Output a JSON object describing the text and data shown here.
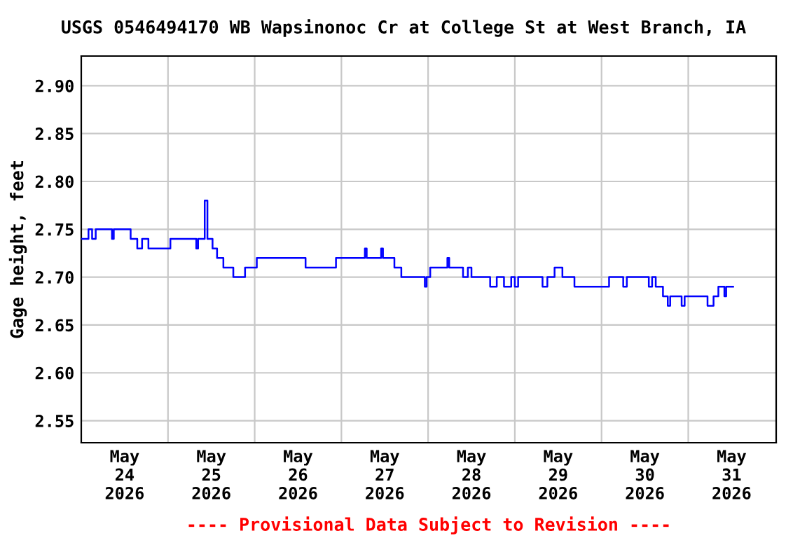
{
  "chart_data": {
    "type": "step",
    "title": "USGS 0546494170 WB Wapsinonoc Cr at College St at West Branch, IA",
    "ylabel": "Gage height, feet",
    "annotations": [
      "---- Provisional Data Subject to Revision ----"
    ],
    "x": [
      "2026-05-23T12:00",
      "2026-05-23T14:00",
      "2026-05-23T15:00",
      "2026-05-23T16:00",
      "2026-05-23T20:30",
      "2026-05-23T21:00",
      "2026-05-24T01:40",
      "2026-05-24T03:30",
      "2026-05-24T04:50",
      "2026-05-24T06:35",
      "2026-05-24T12:40",
      "2026-05-24T19:50",
      "2026-05-24T20:20",
      "2026-05-24T22:10",
      "2026-05-24T22:55",
      "2026-05-25T00:20",
      "2026-05-25T01:35",
      "2026-05-25T03:20",
      "2026-05-25T06:05",
      "2026-05-25T09:20",
      "2026-05-25T12:35",
      "2026-05-26T02:05",
      "2026-05-26T10:30",
      "2026-05-26T18:30",
      "2026-05-26T19:00",
      "2026-05-26T23:00",
      "2026-05-26T23:30",
      "2026-05-27T02:40",
      "2026-05-27T04:35",
      "2026-05-27T11:05",
      "2026-05-27T11:35",
      "2026-05-27T12:35",
      "2026-05-27T17:20",
      "2026-05-27T17:50",
      "2026-05-27T21:40",
      "2026-05-27T23:00",
      "2026-05-28T00:00",
      "2026-05-28T05:10",
      "2026-05-28T07:00",
      "2026-05-28T09:00",
      "2026-05-28T11:00",
      "2026-05-28T12:00",
      "2026-05-28T12:55",
      "2026-05-28T19:40",
      "2026-05-28T21:00",
      "2026-05-28T23:00",
      "2026-05-29T01:10",
      "2026-05-29T04:30",
      "2026-05-29T14:05",
      "2026-05-29T18:00",
      "2026-05-29T19:00",
      "2026-05-30T01:05",
      "2026-05-30T02:00",
      "2026-05-30T03:00",
      "2026-05-30T05:00",
      "2026-05-30T06:20",
      "2026-05-30T07:00",
      "2026-05-30T10:10",
      "2026-05-30T11:00",
      "2026-05-30T17:20",
      "2026-05-30T19:00",
      "2026-05-30T20:20",
      "2026-05-30T22:00",
      "2026-05-30T22:30",
      "2026-05-31T00:25"
    ],
    "series": [
      {
        "color": "#0000ff",
        "values": [
          2.74,
          2.75,
          2.74,
          2.75,
          2.74,
          2.75,
          2.74,
          2.73,
          2.74,
          2.73,
          2.74,
          2.73,
          2.74,
          2.78,
          2.74,
          2.73,
          2.72,
          2.71,
          2.7,
          2.71,
          2.72,
          2.71,
          2.72,
          2.73,
          2.72,
          2.73,
          2.72,
          2.71,
          2.7,
          2.69,
          2.7,
          2.71,
          2.72,
          2.71,
          2.7,
          2.71,
          2.7,
          2.69,
          2.7,
          2.69,
          2.7,
          2.69,
          2.7,
          2.69,
          2.7,
          2.71,
          2.7,
          2.69,
          2.7,
          2.69,
          2.7,
          2.69,
          2.7,
          2.69,
          2.68,
          2.67,
          2.68,
          2.67,
          2.68,
          2.67,
          2.68,
          2.69,
          2.68,
          2.69,
          2.69
        ]
      }
    ],
    "xlim": [
      "2026-05-23T12:00",
      "2026-05-31T12:20"
    ],
    "xticks": [
      {
        "value": "2026-05-24",
        "label": "May\n24\n2026"
      },
      {
        "value": "2026-05-24T12:00",
        "label": null
      },
      {
        "value": "2026-05-25",
        "label": "May\n25\n2026"
      },
      {
        "value": "2026-05-25T12:00",
        "label": null
      },
      {
        "value": "2026-05-26",
        "label": "May\n26\n2026"
      },
      {
        "value": "2026-05-26T12:00",
        "label": null
      },
      {
        "value": "2026-05-27",
        "label": "May\n27\n2026"
      },
      {
        "value": "2026-05-27T12:00",
        "label": null
      },
      {
        "value": "2026-05-28",
        "label": "May\n28\n2026"
      },
      {
        "value": "2026-05-28T12:00",
        "label": null
      },
      {
        "value": "2026-05-29",
        "label": "May\n29\n2026"
      },
      {
        "value": "2026-05-29T12:00",
        "label": null
      },
      {
        "value": "2026-05-30",
        "label": "May\n30\n2026"
      },
      {
        "value": "2026-05-30T12:00",
        "label": null
      },
      {
        "value": "2026-05-31",
        "label": "May\n31\n2026"
      }
    ],
    "ylim": [
      2.527,
      2.931
    ],
    "yticks": [
      {
        "value": 2.55,
        "label": "2.55"
      },
      {
        "value": 2.6,
        "label": "2.60"
      },
      {
        "value": 2.65,
        "label": "2.65"
      },
      {
        "value": 2.7,
        "label": "2.70"
      },
      {
        "value": 2.75,
        "label": "2.75"
      },
      {
        "value": 2.8,
        "label": "2.80"
      },
      {
        "value": 2.85,
        "label": "2.85"
      },
      {
        "value": 2.9,
        "label": "2.90"
      }
    ],
    "grid": true,
    "legend": false,
    "marker": "none",
    "line_style": "solid"
  }
}
